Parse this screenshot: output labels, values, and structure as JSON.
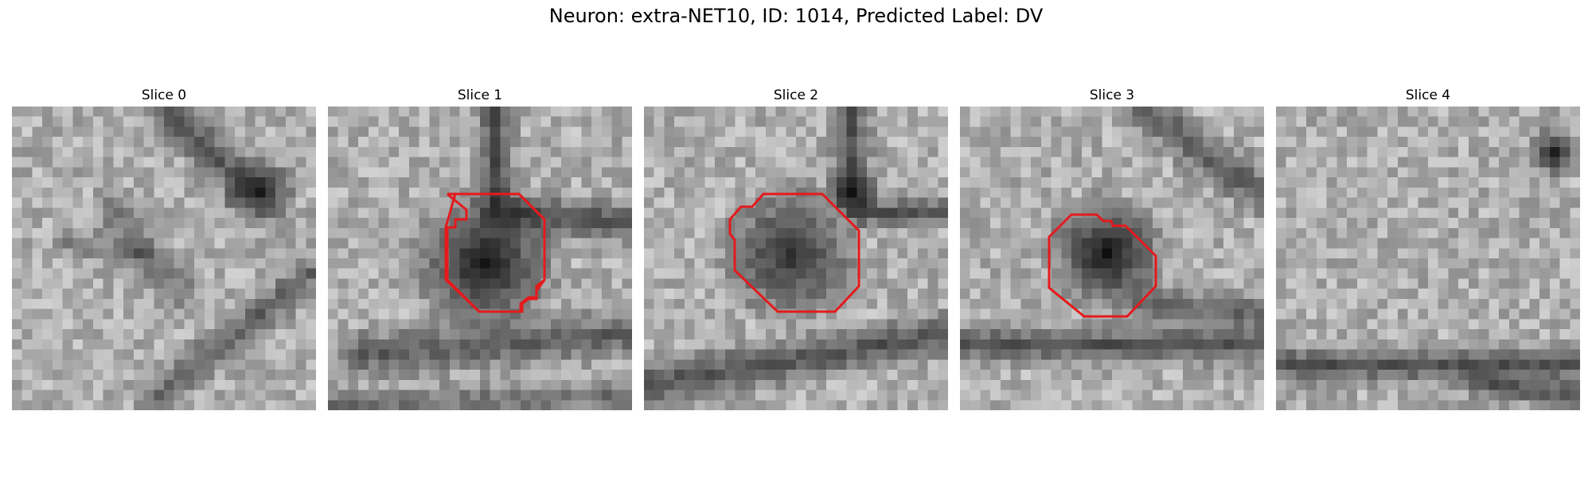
{
  "figure": {
    "title": "Neuron: extra-NET10, ID: 1014, Predicted Label: DV"
  },
  "slices": [
    {
      "title": "Slice 0",
      "has_outline": false
    },
    {
      "title": "Slice 1",
      "has_outline": true
    },
    {
      "title": "Slice 2",
      "has_outline": true
    },
    {
      "title": "Slice 3",
      "has_outline": true
    },
    {
      "title": "Slice 4",
      "has_outline": false
    }
  ],
  "colors": {
    "outline": "#e41a1c",
    "colormap": "grayscale"
  }
}
